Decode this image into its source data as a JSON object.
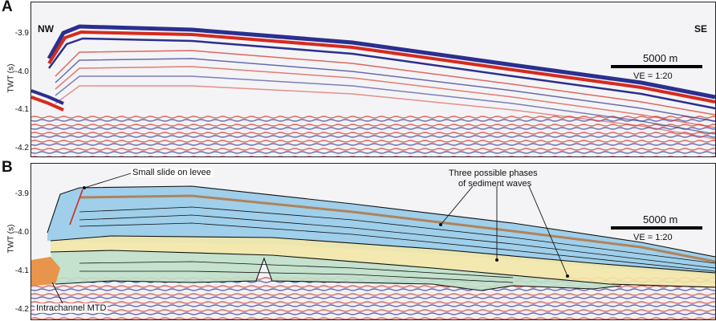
{
  "panel_a": {
    "label": "A",
    "left_label": "NW",
    "right_label": "SE",
    "scale_label": "5000 m",
    "ve_label": "VE = 1:20"
  },
  "panel_b": {
    "label": "B",
    "scale_label": "5000 m",
    "ve_label": "VE = 1:20",
    "annotation_slide": "Small slide on levee",
    "annotation_waves_line1": "Three possible phases",
    "annotation_waves_line2": "of sediment waves",
    "annotation_mtd": "Intrachannel MTD"
  },
  "axis": {
    "title": "TWT (s)",
    "ticks": [
      "-3.9",
      "-4.0",
      "-4.1",
      "-4.2"
    ]
  },
  "colors": {
    "reflector_red": "#d62a1e",
    "reflector_blue": "#2b2f8f",
    "fill_blue": "#8fc8e8",
    "fill_yellow": "#f3e7a8",
    "fill_green": "#bfe0c9",
    "fill_orange": "#e8944a"
  }
}
